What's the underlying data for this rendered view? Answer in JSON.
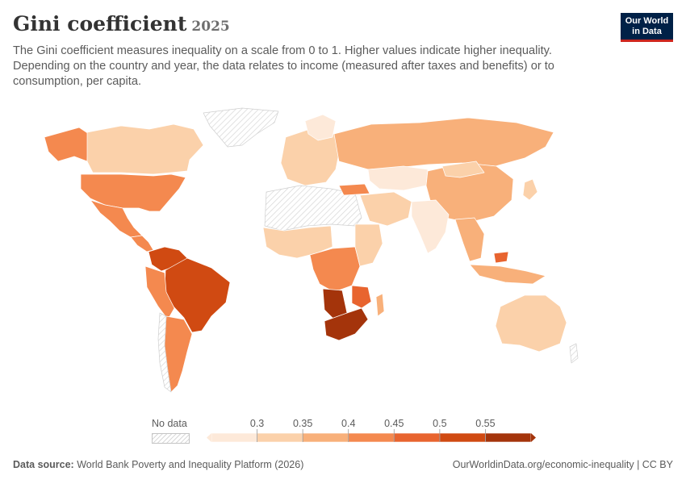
{
  "header": {
    "title": "Gini coefficient",
    "year": "2025",
    "subtitle": "The Gini coefficient measures inequality on a scale from 0 to 1. Higher values indicate higher inequality. Depending on the country and year, the data relates to income (measured after taxes and benefits) or to consumption, per capita."
  },
  "logo": {
    "line1": "Our World",
    "line2": "in Data"
  },
  "legend": {
    "no_data_label": "No data",
    "ticks": [
      "0.3",
      "0.35",
      "0.4",
      "0.45",
      "0.5",
      "0.55"
    ],
    "colors": [
      "#fde9d9",
      "#fbd1aa",
      "#f8b07a",
      "#f4894f",
      "#e8642f",
      "#d04a12",
      "#a4340b"
    ]
  },
  "map": {
    "countries": [
      {
        "name": "United States",
        "gini": 0.41
      },
      {
        "name": "Canada",
        "gini": 0.32
      },
      {
        "name": "Mexico",
        "gini": 0.43
      },
      {
        "name": "Brazil",
        "gini": 0.52
      },
      {
        "name": "Colombia",
        "gini": 0.54
      },
      {
        "name": "Argentina",
        "gini": 0.42
      },
      {
        "name": "Russia",
        "gini": 0.35
      },
      {
        "name": "China",
        "gini": 0.36
      },
      {
        "name": "India",
        "gini": 0.26
      },
      {
        "name": "Australia",
        "gini": 0.34
      },
      {
        "name": "South Africa",
        "gini": 0.62
      },
      {
        "name": "Namibia",
        "gini": 0.59
      },
      {
        "name": "Turkey",
        "gini": 0.44
      }
    ]
  },
  "footer": {
    "source_label": "Data source:",
    "source_text": "World Bank Poverty and Inequality Platform (2026)",
    "credit": "OurWorldinData.org/economic-inequality | CC BY"
  }
}
